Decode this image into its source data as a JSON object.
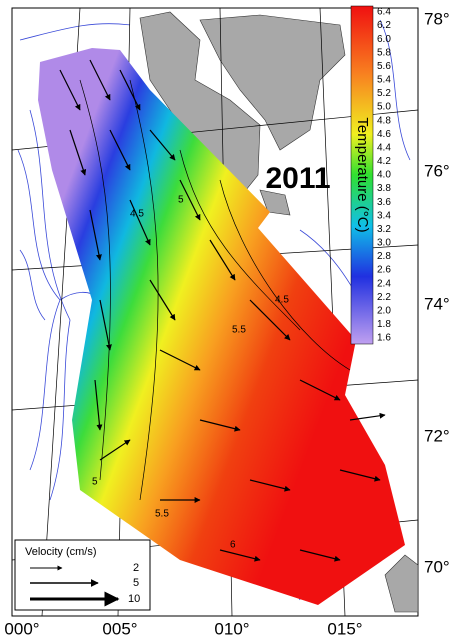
{
  "map": {
    "year": "2011",
    "colorbar": {
      "title": "Temperature (°C)",
      "ticks": [
        "6.4",
        "6.2",
        "6.0",
        "5.8",
        "5.6",
        "5.4",
        "5.2",
        "5.0",
        "4.8",
        "4.6",
        "4.4",
        "4.2",
        "4.0",
        "3.8",
        "3.6",
        "3.4",
        "3.2",
        "3.0",
        "2.8",
        "2.6",
        "2.4",
        "2.2",
        "2.0",
        "1.8",
        "1.6"
      ]
    },
    "latitude_labels": [
      "78°",
      "76°",
      "74°",
      "72°",
      "70°"
    ],
    "longitude_labels": [
      "000°",
      "005°",
      "010°",
      "015°"
    ],
    "contour_labels": [
      "4.5",
      "5",
      "4.5",
      "5.5",
      "5.5",
      "6",
      "5"
    ],
    "velocity_legend": {
      "title": "Velocity (cm/s)",
      "labels": [
        "2",
        "5",
        "10"
      ]
    }
  }
}
